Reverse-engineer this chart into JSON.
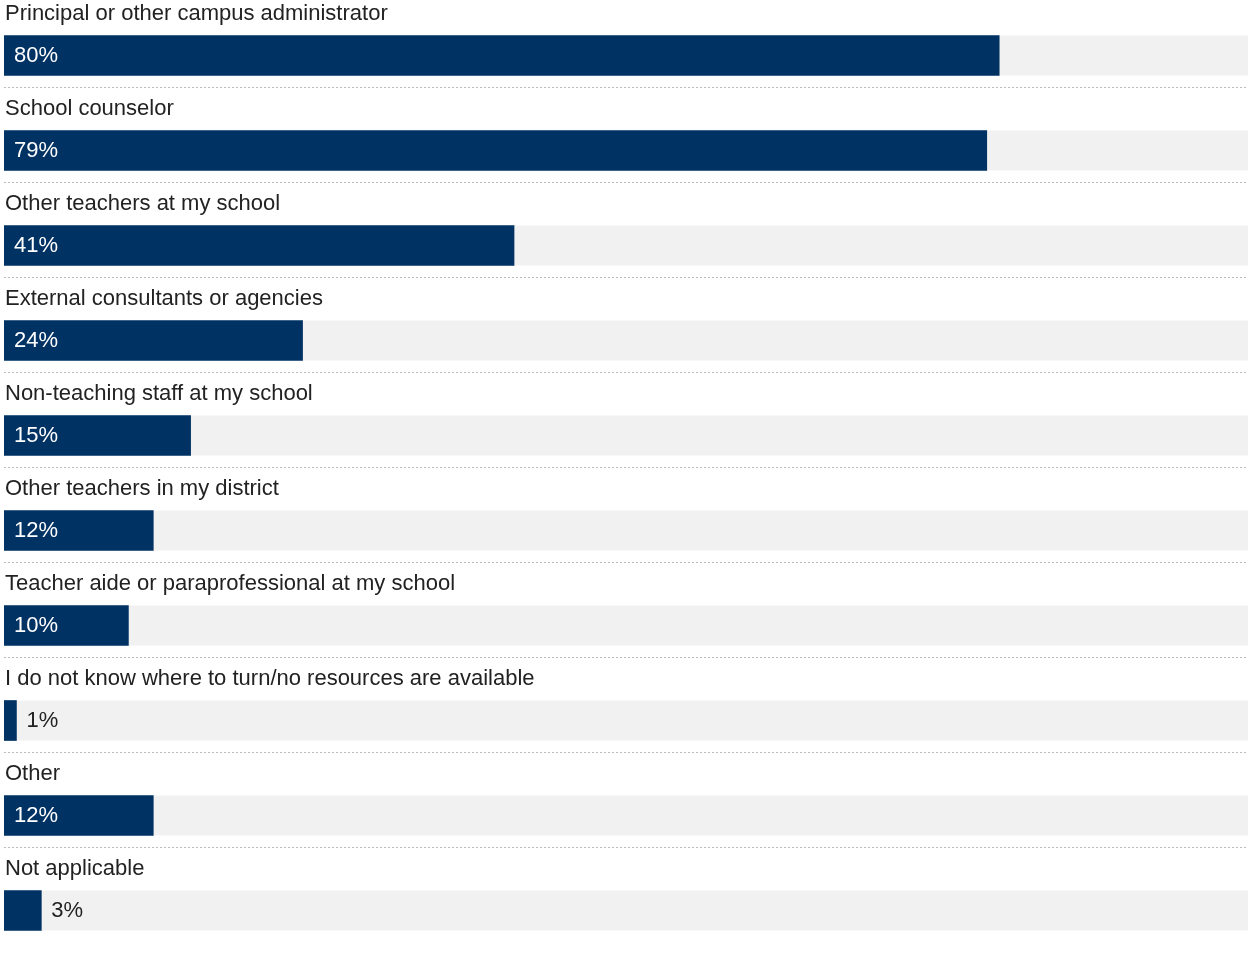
{
  "chart_data": {
    "type": "bar",
    "orientation": "horizontal",
    "categories": [
      "Principal or other campus administrator",
      "School counselor",
      "Other teachers at my school",
      "External consultants or agencies",
      "Non-teaching staff at my school",
      "Other teachers in my district",
      "Teacher aide or paraprofessional at my school",
      "I do not know where to turn/no resources are available",
      "Other",
      "Not applicable"
    ],
    "values": [
      80,
      79,
      41,
      24,
      15,
      12,
      10,
      1,
      12,
      3
    ],
    "color": "#003263",
    "xlim": [
      0,
      100
    ],
    "value_labels": [
      "80%",
      "79%",
      "41%",
      "24%",
      "15%",
      "12%",
      "10%",
      "1%",
      "12%",
      "3%"
    ],
    "tick_labels": false,
    "legend": false
  }
}
